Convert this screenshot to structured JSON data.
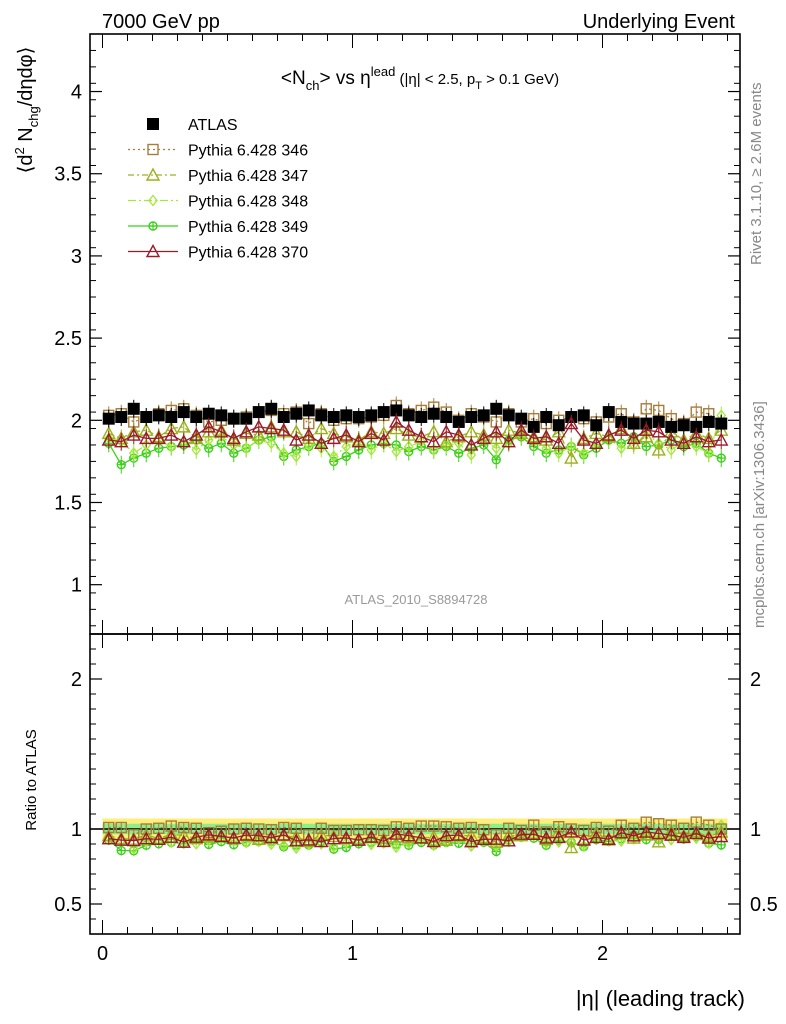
{
  "header": {
    "left": "7000 GeV pp",
    "right": "Underlying Event"
  },
  "side_labels": {
    "rivet": "Rivet 3.1.10, ≥ 2.6M events",
    "mcplots": "mcplots.cern.ch [arXiv:1306.3436]"
  },
  "chart_data": [
    {
      "type": "scatter",
      "title": "<N_ch> vs η^lead (|η| < 2.5, p_T > 0.1 GeV)",
      "ylabel": "⟨d² N_chg/dηdφ⟩",
      "xlabel": "",
      "ylim": [
        0.7,
        4.35
      ],
      "yticks": [
        "1",
        "1.5",
        "2",
        "2.5",
        "3",
        "3.5",
        "4"
      ],
      "xlim": [
        -0.05,
        2.55
      ],
      "watermark": "ATLAS_2010_S8894728",
      "legend_position": "top-left",
      "legend": [
        {
          "label": "ATLAS",
          "color": "#000000",
          "marker": "square-filled"
        },
        {
          "label": "Pythia 6.428 346",
          "color": "#a87d3a",
          "marker": "square-open"
        },
        {
          "label": "Pythia 6.428 347",
          "color": "#9cb01c",
          "marker": "triangle-open"
        },
        {
          "label": "Pythia 6.428 348",
          "color": "#a3e83a",
          "marker": "diamond-open"
        },
        {
          "label": "Pythia 6.428 349",
          "color": "#3cd01a",
          "marker": "cross-circle"
        },
        {
          "label": "Pythia 6.428 370",
          "color": "#9a1a2a",
          "marker": "triangle-open"
        }
      ],
      "x": [
        0.025,
        0.075,
        0.125,
        0.175,
        0.225,
        0.275,
        0.325,
        0.375,
        0.425,
        0.475,
        0.525,
        0.575,
        0.625,
        0.675,
        0.725,
        0.775,
        0.825,
        0.875,
        0.925,
        0.975,
        1.025,
        1.075,
        1.125,
        1.175,
        1.225,
        1.275,
        1.325,
        1.375,
        1.425,
        1.475,
        1.525,
        1.575,
        1.625,
        1.675,
        1.725,
        1.775,
        1.825,
        1.875,
        1.925,
        1.975,
        2.025,
        2.075,
        2.125,
        2.175,
        2.225,
        2.275,
        2.325,
        2.375,
        2.425,
        2.475
      ],
      "series": [
        {
          "name": "ATLAS",
          "values": [
            2.01,
            2.02,
            2.07,
            2.02,
            2.03,
            2.02,
            2.05,
            2.02,
            2.04,
            2.03,
            2.01,
            2.01,
            2.05,
            2.07,
            2.02,
            2.04,
            2.06,
            2.03,
            2.02,
            2.03,
            2.02,
            2.03,
            2.05,
            2.06,
            2.03,
            2.02,
            2.04,
            2.02,
            1.99,
            2.02,
            2.03,
            2.07,
            2.03,
            2.01,
            1.96,
            2.02,
            1.97,
            2.02,
            2.03,
            1.97,
            2.05,
            1.99,
            1.98,
            1.98,
            1.99,
            1.96,
            1.97,
            1.96,
            1.99,
            1.98
          ]
        },
        {
          "name": "Pythia 6.428 346",
          "values": [
            2.03,
            2.04,
            1.99,
            2.02,
            2.04,
            2.06,
            2.07,
            2.03,
            1.99,
            2.0,
            2.01,
            2.02,
            2.05,
            2.06,
            2.04,
            2.05,
            1.98,
            2.04,
            2.0,
            2.01,
            2.01,
            2.02,
            2.03,
            2.09,
            2.04,
            2.06,
            2.08,
            2.05,
            2.0,
            2.04,
            2.02,
            1.99,
            2.04,
            1.99,
            2.01,
            1.98,
            2.0,
            2.02,
            2.01,
            1.99,
            2.02,
            2.04,
            1.99,
            2.07,
            2.06,
            2.01,
            1.98,
            2.05,
            2.04,
            1.98
          ]
        },
        {
          "name": "Pythia 6.428 347",
          "values": [
            1.92,
            1.89,
            1.93,
            1.94,
            1.9,
            1.95,
            1.96,
            1.89,
            1.93,
            1.94,
            1.88,
            1.92,
            1.91,
            1.96,
            1.93,
            1.93,
            1.89,
            1.95,
            1.92,
            1.9,
            1.88,
            1.93,
            1.92,
            1.95,
            1.91,
            1.9,
            1.93,
            1.87,
            1.9,
            1.93,
            1.91,
            1.89,
            1.94,
            1.92,
            1.9,
            1.88,
            1.93,
            1.77,
            1.89,
            1.92,
            1.9,
            1.95,
            1.86,
            1.9,
            1.82,
            1.93,
            1.88,
            1.92,
            1.89,
            1.94
          ]
        },
        {
          "name": "Pythia 6.428 348",
          "values": [
            1.89,
            1.87,
            1.8,
            1.85,
            1.88,
            1.84,
            1.87,
            1.82,
            1.88,
            1.9,
            1.85,
            1.83,
            1.88,
            1.86,
            1.8,
            1.78,
            1.85,
            1.83,
            1.78,
            1.84,
            1.88,
            1.82,
            1.86,
            1.81,
            1.84,
            1.87,
            1.82,
            1.85,
            1.86,
            1.79,
            1.88,
            1.83,
            1.86,
            1.91,
            1.87,
            1.83,
            1.8,
            1.84,
            1.8,
            1.86,
            1.89,
            1.83,
            1.85,
            1.92,
            1.86,
            1.82,
            1.87,
            1.84,
            1.8,
            2.03
          ]
        },
        {
          "name": "Pythia 6.428 349",
          "values": [
            1.86,
            1.73,
            1.77,
            1.8,
            1.83,
            1.84,
            1.85,
            1.88,
            1.83,
            1.86,
            1.8,
            1.83,
            1.88,
            1.9,
            1.78,
            1.82,
            1.84,
            1.86,
            1.75,
            1.78,
            1.82,
            1.85,
            1.86,
            1.85,
            1.81,
            1.84,
            1.82,
            1.84,
            1.8,
            1.83,
            1.85,
            1.76,
            1.88,
            1.9,
            1.84,
            1.8,
            1.82,
            1.84,
            1.79,
            1.83,
            1.88,
            1.86,
            1.9,
            1.84,
            1.85,
            1.88,
            1.84,
            1.86,
            1.8,
            1.77
          ]
        },
        {
          "name": "Pythia 6.428 370",
          "values": [
            1.88,
            1.87,
            1.91,
            1.89,
            1.89,
            1.91,
            1.87,
            1.91,
            1.96,
            1.93,
            1.89,
            1.93,
            1.96,
            1.95,
            1.94,
            1.88,
            1.91,
            1.86,
            1.89,
            1.91,
            1.87,
            1.92,
            1.88,
            1.99,
            1.94,
            1.9,
            1.87,
            1.93,
            1.91,
            1.85,
            1.89,
            1.93,
            1.87,
            1.94,
            1.89,
            1.9,
            1.86,
            1.98,
            1.88,
            1.86,
            1.91,
            1.94,
            1.89,
            1.94,
            1.93,
            1.88,
            1.86,
            1.9,
            1.87,
            1.88
          ]
        }
      ]
    },
    {
      "type": "scatter",
      "title": "",
      "ylabel": "Ratio to ATLAS",
      "xlabel": "|η| (leading track)",
      "ylim": [
        0.3,
        2.3
      ],
      "yticks": [
        "0.5",
        "1",
        "2"
      ],
      "xlim": [
        -0.05,
        2.55
      ],
      "xticks": [
        "0",
        "1",
        "2"
      ],
      "reference_line": 1,
      "bands": [
        {
          "kind": "outer",
          "color": "#ffee7a",
          "half_width": 0.07
        },
        {
          "kind": "inner",
          "color": "#8cee8c",
          "half_width": 0.035
        }
      ]
    }
  ]
}
